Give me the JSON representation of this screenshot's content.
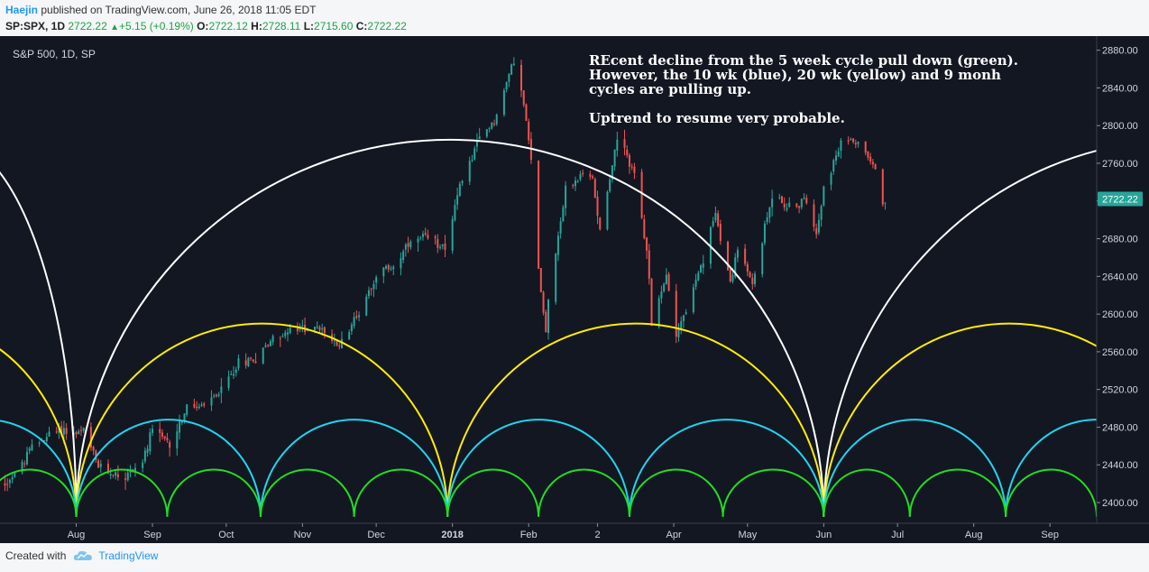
{
  "header": {
    "author": "Haejin",
    "published_text": " published on TradingView.com, June 26, 2018 11:05 EDT",
    "symbol": "SP:SPX, 1D",
    "last": "2722.22",
    "change": "+5.15 (+0.19%)",
    "o_label": "O:",
    "o_value": "2722.12",
    "h_label": "H:",
    "h_value": "2728.11",
    "l_label": "L:",
    "l_value": "2715.60",
    "c_label": "C:",
    "c_value": "2722.22"
  },
  "footer": {
    "created_with": "Created with",
    "brand": "TradingView"
  },
  "colors": {
    "background": "#131722",
    "up": "#26a69a",
    "down": "#ef5350",
    "cycle_9mo": "#ffffff",
    "cycle_20wk": "#ffee00",
    "cycle_10wk": "#22d3ee",
    "cycle_5wk": "#22dd22",
    "price_badge": "#26a69a"
  },
  "chart_data": {
    "type": "candlestick",
    "title": "S&P 500, 1D, SP",
    "annotation_lines": [
      "REcent decline from the 5 week cycle pull down (green).",
      "However, the 10 wk (blue), 20 wk (yellow) and 9 monh",
      "cycles are pulling up.",
      "",
      "Uptrend to resume very probable."
    ],
    "price_label": "2722.22",
    "y_ticks": [
      2400,
      2440,
      2480,
      2520,
      2560,
      2600,
      2640,
      2680,
      2720,
      2760,
      2800,
      2840,
      2880
    ],
    "y_tick_labels": [
      "2400.00",
      "2440.00",
      "2480.00",
      "2520.00",
      "2560.00",
      "2600.00",
      "2640.00",
      "2680.00",
      "2720.00",
      "2760.00",
      "2800.00",
      "2840.00",
      "2880.00"
    ],
    "ylim": [
      2378,
      2895
    ],
    "x_ticks": [
      {
        "label": "Aug",
        "date": "2017-08-01"
      },
      {
        "label": "Sep",
        "date": "2017-09-01"
      },
      {
        "label": "Oct",
        "date": "2017-10-01"
      },
      {
        "label": "Nov",
        "date": "2017-11-01"
      },
      {
        "label": "Dec",
        "date": "2017-12-01"
      },
      {
        "label": "2018",
        "date": "2018-01-01"
      },
      {
        "label": "Feb",
        "date": "2018-02-01"
      },
      {
        "label": "2",
        "date": "2018-03-01"
      },
      {
        "label": "Apr",
        "date": "2018-04-01"
      },
      {
        "label": "May",
        "date": "2018-05-01"
      },
      {
        "label": "Jun",
        "date": "2018-06-01"
      },
      {
        "label": "Jul",
        "date": "2018-07-01"
      },
      {
        "label": "Aug",
        "date": "2018-08-01"
      },
      {
        "label": "Sep",
        "date": "2018-09-01"
      }
    ],
    "xlim": [
      "2017-07-01",
      "2018-09-20"
    ],
    "close_path": [
      [
        "2017-07-03",
        2420
      ],
      [
        "2017-07-10",
        2440
      ],
      [
        "2017-07-14",
        2459
      ],
      [
        "2017-07-21",
        2472
      ],
      [
        "2017-07-26",
        2478
      ],
      [
        "2017-07-31",
        2472
      ],
      [
        "2017-08-04",
        2476
      ],
      [
        "2017-08-10",
        2438
      ],
      [
        "2017-08-17",
        2430
      ],
      [
        "2017-08-21",
        2428
      ],
      [
        "2017-08-28",
        2444
      ],
      [
        "2017-09-01",
        2476
      ],
      [
        "2017-09-08",
        2462
      ],
      [
        "2017-09-15",
        2500
      ],
      [
        "2017-09-22",
        2502
      ],
      [
        "2017-09-29",
        2519
      ],
      [
        "2017-10-06",
        2549
      ],
      [
        "2017-10-13",
        2553
      ],
      [
        "2017-10-20",
        2575
      ],
      [
        "2017-10-27",
        2581
      ],
      [
        "2017-11-03",
        2587
      ],
      [
        "2017-11-10",
        2582
      ],
      [
        "2017-11-15",
        2565
      ],
      [
        "2017-11-24",
        2602
      ],
      [
        "2017-12-01",
        2642
      ],
      [
        "2017-12-08",
        2651
      ],
      [
        "2017-12-15",
        2675
      ],
      [
        "2017-12-20",
        2680
      ],
      [
        "2017-12-29",
        2673
      ],
      [
        "2018-01-05",
        2743
      ],
      [
        "2018-01-12",
        2786
      ],
      [
        "2018-01-19",
        2810
      ],
      [
        "2018-01-26",
        2872
      ],
      [
        "2018-01-30",
        2822
      ],
      [
        "2018-02-02",
        2762
      ],
      [
        "2018-02-05",
        2648
      ],
      [
        "2018-02-08",
        2581
      ],
      [
        "2018-02-09",
        2619
      ],
      [
        "2018-02-16",
        2732
      ],
      [
        "2018-02-23",
        2747
      ],
      [
        "2018-02-27",
        2744
      ],
      [
        "2018-03-02",
        2691
      ],
      [
        "2018-03-09",
        2786
      ],
      [
        "2018-03-13",
        2765
      ],
      [
        "2018-03-16",
        2752
      ],
      [
        "2018-03-22",
        2643
      ],
      [
        "2018-03-23",
        2588
      ],
      [
        "2018-03-29",
        2640
      ],
      [
        "2018-04-02",
        2581
      ],
      [
        "2018-04-06",
        2604
      ],
      [
        "2018-04-13",
        2656
      ],
      [
        "2018-04-18",
        2708
      ],
      [
        "2018-04-24",
        2634
      ],
      [
        "2018-04-27",
        2670
      ],
      [
        "2018-05-03",
        2630
      ],
      [
        "2018-05-11",
        2728
      ],
      [
        "2018-05-18",
        2712
      ],
      [
        "2018-05-25",
        2721
      ],
      [
        "2018-05-29",
        2689
      ],
      [
        "2018-06-01",
        2735
      ],
      [
        "2018-06-08",
        2779
      ],
      [
        "2018-06-12",
        2787
      ],
      [
        "2018-06-18",
        2774
      ],
      [
        "2018-06-22",
        2755
      ],
      [
        "2018-06-25",
        2717
      ],
      [
        "2018-06-26",
        2722
      ]
    ],
    "cycles": [
      {
        "name": "9 month",
        "color": "#ffffff",
        "troughs": [
          "2017-04-18",
          "2017-08-01",
          "2018-06-01",
          "2019-03-20"
        ]
      },
      {
        "name": "20 wk",
        "color": "#ffee00",
        "troughs": [
          "2017-03-30",
          "2017-08-01",
          "2017-12-30",
          "2018-06-01",
          "2018-10-30"
        ]
      },
      {
        "name": "10 wk",
        "color": "#22d3ee",
        "troughs": [
          "2017-05-20",
          "2017-08-01",
          "2017-10-15",
          "2017-12-30",
          "2018-03-14",
          "2018-06-01",
          "2018-08-14",
          "2018-10-27"
        ]
      },
      {
        "name": "5 wk",
        "color": "#22dd22",
        "troughs": [
          "2017-06-24",
          "2017-08-01",
          "2017-09-07",
          "2017-10-15",
          "2017-11-22",
          "2017-12-30",
          "2018-02-05",
          "2018-03-14",
          "2018-04-21",
          "2018-06-01",
          "2018-07-06",
          "2018-08-14",
          "2018-09-20"
        ]
      }
    ]
  }
}
